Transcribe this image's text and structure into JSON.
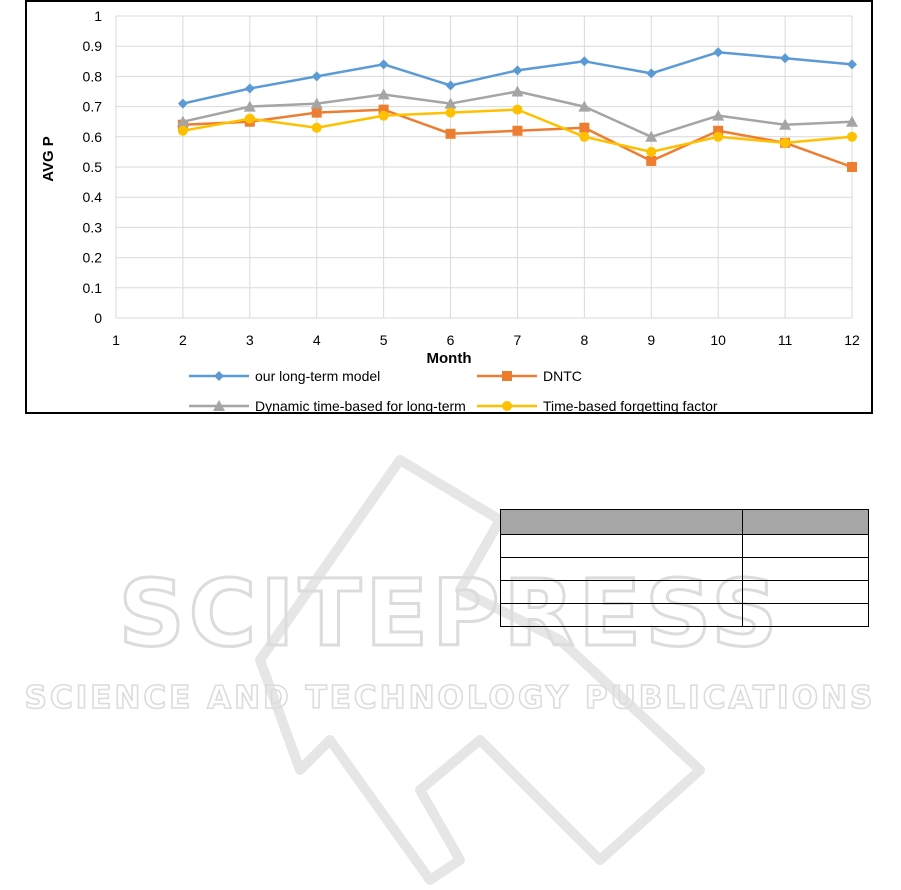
{
  "chart_data": {
    "type": "line",
    "xlabel": "Month",
    "ylabel": "AVG P",
    "x": [
      2,
      3,
      4,
      5,
      6,
      7,
      8,
      9,
      10,
      11,
      12
    ],
    "xlim": [
      1,
      12
    ],
    "ylim": [
      0,
      1
    ],
    "xticks": [
      "1",
      "2",
      "3",
      "4",
      "5",
      "6",
      "7",
      "8",
      "9",
      "10",
      "11",
      "12"
    ],
    "yticks": [
      "0",
      "0.1",
      "0.2",
      "0.3",
      "0.4",
      "0.5",
      "0.6",
      "0.7",
      "0.8",
      "0.9",
      "1"
    ],
    "grid": true,
    "legend_position": "bottom",
    "series": [
      {
        "name": "our long-term model",
        "color": "#5b9bd5",
        "marker": "diamond",
        "values": [
          0.71,
          0.76,
          0.8,
          0.84,
          0.77,
          0.82,
          0.85,
          0.81,
          0.88,
          0.86,
          0.84
        ]
      },
      {
        "name": "DNTC",
        "color": "#ed7d31",
        "marker": "square",
        "values": [
          0.64,
          0.65,
          0.68,
          0.69,
          0.61,
          0.62,
          0.63,
          0.52,
          0.62,
          0.58,
          0.5
        ]
      },
      {
        "name": "Dynamic time-based for long-term",
        "color": "#a5a5a5",
        "marker": "triangle",
        "values": [
          0.65,
          0.7,
          0.71,
          0.74,
          0.71,
          0.75,
          0.7,
          0.6,
          0.67,
          0.64,
          0.65
        ]
      },
      {
        "name": "Time-based forgetting factor",
        "color": "#ffc000",
        "marker": "circle",
        "values": [
          0.62,
          0.66,
          0.63,
          0.67,
          0.68,
          0.69,
          0.6,
          0.55,
          0.6,
          0.58,
          0.6
        ]
      }
    ]
  },
  "watermark": {
    "line1": "SCITEPRESS",
    "line2": "SCIENCE AND TECHNOLOGY PUBLICATIONS"
  },
  "table": {
    "rows": [
      [
        "",
        ""
      ],
      [
        "",
        ""
      ],
      [
        "",
        ""
      ],
      [
        "",
        ""
      ],
      [
        "",
        ""
      ]
    ]
  }
}
